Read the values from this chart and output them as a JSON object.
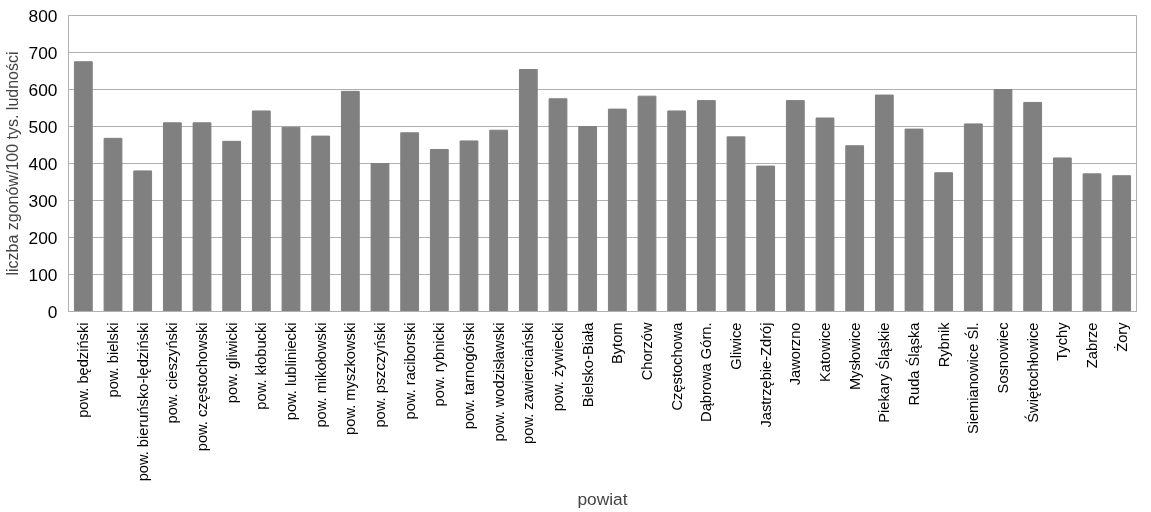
{
  "chart_data": {
    "type": "bar",
    "xlabel": "powiat",
    "ylabel": "liczba zgonów/100 tys. ludności",
    "categories": [
      "pow. będziński",
      "pow. bielski",
      "pow. bieruńsko-lędziński",
      "pow. cieszyński",
      "pow. częstochowski",
      "pow. gliwicki",
      "pow. kłobucki",
      "pow. lubliniecki",
      "pow. mikołowski",
      "pow. myszkowski",
      "pow. pszczyński",
      "pow. raciborski",
      "pow. rybnicki",
      "pow. tarnogórski",
      "pow. wodzisławski",
      "pow. zawierciański",
      "pow. żywiecki",
      "Bielsko-Biała",
      "Bytom",
      "Chorzów",
      "Częstochowa",
      "Dąbrowa Górn.",
      "Gliwice",
      "Jastrzębie-Zdrój",
      "Jaworzno",
      "Katowice",
      "Mysłowice",
      "Piekary Śląskie",
      "Ruda Śląska",
      "Rybnik",
      "Siemianowice Śl.",
      "Sosnowiec",
      "Świętochłowice",
      "Tychy",
      "Zabrze",
      "Żory"
    ],
    "values": [
      675,
      468,
      380,
      510,
      510,
      460,
      542,
      498,
      474,
      595,
      400,
      483,
      438,
      461,
      490,
      654,
      575,
      500,
      547,
      582,
      542,
      570,
      472,
      393,
      570,
      523,
      448,
      585,
      493,
      375,
      507,
      600,
      565,
      415,
      372,
      367
    ],
    "color": "#808080",
    "ylim": [
      0,
      800
    ],
    "yticks": [
      0,
      100,
      200,
      300,
      400,
      500,
      600,
      700,
      800
    ],
    "grid": "y"
  }
}
